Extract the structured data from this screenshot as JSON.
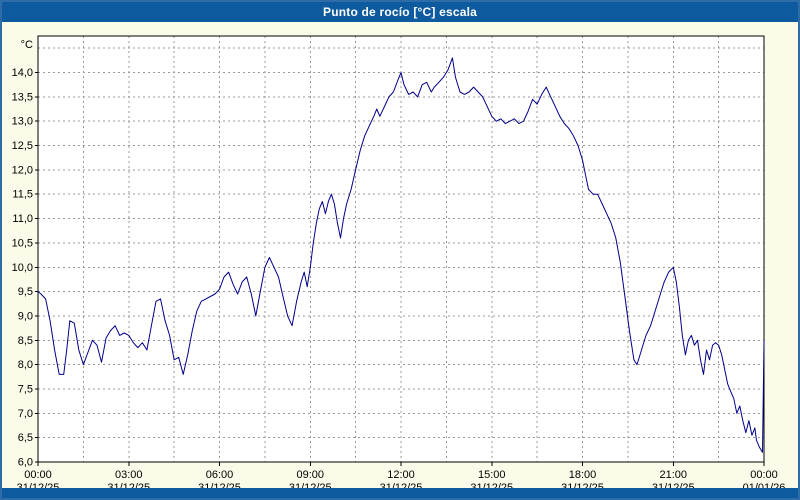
{
  "window": {
    "title": "Punto de rocío [°C] escala"
  },
  "colors": {
    "titlebar": "#0e5a9e",
    "frame": "#2e6ca8",
    "page_bg": "#fbfbea",
    "plot_bg": "#ffffff",
    "grid": "#999999",
    "axis": "#000000",
    "line": "#00008b",
    "label": "#000000"
  },
  "chart_data": {
    "type": "line",
    "title": "Punto de rocío [°C] escala",
    "ylabel": "°C",
    "xlabel": "",
    "ylim": [
      6.0,
      14.75
    ],
    "x_hours_span": 24,
    "x_grid_step_hours": 1.5,
    "y_grid_step": 0.5,
    "legend": "none",
    "grid": "dashed",
    "y_ticks": [
      {
        "label": "14,0",
        "value": 14.0
      },
      {
        "label": "13,5",
        "value": 13.5
      },
      {
        "label": "13,0",
        "value": 13.0
      },
      {
        "label": "12,5",
        "value": 12.5
      },
      {
        "label": "12,0",
        "value": 12.0
      },
      {
        "label": "11,5",
        "value": 11.5
      },
      {
        "label": "11,0",
        "value": 11.0
      },
      {
        "label": "10,5",
        "value": 10.5
      },
      {
        "label": "10,0",
        "value": 10.0
      },
      {
        "label": "9,5",
        "value": 9.5
      },
      {
        "label": "9,0",
        "value": 9.0
      },
      {
        "label": "8,5",
        "value": 8.5
      },
      {
        "label": "8,0",
        "value": 8.0
      },
      {
        "label": "7,5",
        "value": 7.5
      },
      {
        "label": "7,0",
        "value": 7.0
      },
      {
        "label": "6,5",
        "value": 6.5
      },
      {
        "label": "6,0",
        "value": 6.0
      }
    ],
    "x_ticks": [
      {
        "hour": 0,
        "time": "00:00",
        "date": "31/12/25"
      },
      {
        "hour": 3,
        "time": "03:00",
        "date": "31/12/25"
      },
      {
        "hour": 6,
        "time": "06:00",
        "date": "31/12/25"
      },
      {
        "hour": 9,
        "time": "09:00",
        "date": "31/12/25"
      },
      {
        "hour": 12,
        "time": "12:00",
        "date": "31/12/25"
      },
      {
        "hour": 15,
        "time": "15:00",
        "date": "31/12/25"
      },
      {
        "hour": 18,
        "time": "18:00",
        "date": "31/12/25"
      },
      {
        "hour": 21,
        "time": "21:00",
        "date": "31/12/25"
      },
      {
        "hour": 24,
        "time": "00:00",
        "date": "01/01/26"
      }
    ],
    "points": [
      [
        0.0,
        9.5
      ],
      [
        0.1,
        9.45
      ],
      [
        0.25,
        9.35
      ],
      [
        0.4,
        8.9
      ],
      [
        0.55,
        8.3
      ],
      [
        0.7,
        7.8
      ],
      [
        0.85,
        7.8
      ],
      [
        0.95,
        8.3
      ],
      [
        1.05,
        8.9
      ],
      [
        1.2,
        8.85
      ],
      [
        1.35,
        8.3
      ],
      [
        1.5,
        8.0
      ],
      [
        1.65,
        8.25
      ],
      [
        1.8,
        8.5
      ],
      [
        1.95,
        8.4
      ],
      [
        2.1,
        8.05
      ],
      [
        2.25,
        8.55
      ],
      [
        2.4,
        8.7
      ],
      [
        2.55,
        8.8
      ],
      [
        2.7,
        8.6
      ],
      [
        2.85,
        8.65
      ],
      [
        3.0,
        8.6
      ],
      [
        3.15,
        8.45
      ],
      [
        3.3,
        8.35
      ],
      [
        3.45,
        8.45
      ],
      [
        3.6,
        8.3
      ],
      [
        3.75,
        8.8
      ],
      [
        3.9,
        9.3
      ],
      [
        4.05,
        9.35
      ],
      [
        4.2,
        8.9
      ],
      [
        4.35,
        8.6
      ],
      [
        4.5,
        8.1
      ],
      [
        4.65,
        8.15
      ],
      [
        4.8,
        7.8
      ],
      [
        4.95,
        8.2
      ],
      [
        5.1,
        8.7
      ],
      [
        5.25,
        9.1
      ],
      [
        5.4,
        9.3
      ],
      [
        5.55,
        9.35
      ],
      [
        5.7,
        9.4
      ],
      [
        5.85,
        9.45
      ],
      [
        6.0,
        9.55
      ],
      [
        6.15,
        9.8
      ],
      [
        6.3,
        9.9
      ],
      [
        6.45,
        9.65
      ],
      [
        6.6,
        9.45
      ],
      [
        6.75,
        9.7
      ],
      [
        6.9,
        9.8
      ],
      [
        7.05,
        9.45
      ],
      [
        7.2,
        9.0
      ],
      [
        7.35,
        9.5
      ],
      [
        7.5,
        10.0
      ],
      [
        7.65,
        10.2
      ],
      [
        7.8,
        10.0
      ],
      [
        7.95,
        9.8
      ],
      [
        8.1,
        9.4
      ],
      [
        8.25,
        9.0
      ],
      [
        8.4,
        8.8
      ],
      [
        8.55,
        9.3
      ],
      [
        8.7,
        9.7
      ],
      [
        8.8,
        9.9
      ],
      [
        8.9,
        9.6
      ],
      [
        9.0,
        10.0
      ],
      [
        9.1,
        10.5
      ],
      [
        9.2,
        10.9
      ],
      [
        9.3,
        11.2
      ],
      [
        9.4,
        11.35
      ],
      [
        9.5,
        11.1
      ],
      [
        9.6,
        11.35
      ],
      [
        9.7,
        11.5
      ],
      [
        9.8,
        11.3
      ],
      [
        9.9,
        10.9
      ],
      [
        10.0,
        10.6
      ],
      [
        10.1,
        11.0
      ],
      [
        10.2,
        11.3
      ],
      [
        10.35,
        11.6
      ],
      [
        10.5,
        12.0
      ],
      [
        10.65,
        12.4
      ],
      [
        10.8,
        12.7
      ],
      [
        10.95,
        12.9
      ],
      [
        11.1,
        13.1
      ],
      [
        11.2,
        13.25
      ],
      [
        11.3,
        13.1
      ],
      [
        11.45,
        13.3
      ],
      [
        11.6,
        13.5
      ],
      [
        11.75,
        13.6
      ],
      [
        11.9,
        13.85
      ],
      [
        12.0,
        14.0
      ],
      [
        12.1,
        13.75
      ],
      [
        12.25,
        13.55
      ],
      [
        12.4,
        13.6
      ],
      [
        12.55,
        13.5
      ],
      [
        12.7,
        13.75
      ],
      [
        12.85,
        13.8
      ],
      [
        13.0,
        13.6
      ],
      [
        13.1,
        13.7
      ],
      [
        13.25,
        13.8
      ],
      [
        13.4,
        13.9
      ],
      [
        13.55,
        14.05
      ],
      [
        13.7,
        14.3
      ],
      [
        13.8,
        13.9
      ],
      [
        13.95,
        13.6
      ],
      [
        14.1,
        13.55
      ],
      [
        14.25,
        13.6
      ],
      [
        14.4,
        13.7
      ],
      [
        14.55,
        13.6
      ],
      [
        14.7,
        13.5
      ],
      [
        14.85,
        13.3
      ],
      [
        15.0,
        13.1
      ],
      [
        15.15,
        13.0
      ],
      [
        15.3,
        13.05
      ],
      [
        15.45,
        12.95
      ],
      [
        15.6,
        13.0
      ],
      [
        15.75,
        13.05
      ],
      [
        15.9,
        12.95
      ],
      [
        16.05,
        13.0
      ],
      [
        16.2,
        13.2
      ],
      [
        16.35,
        13.45
      ],
      [
        16.5,
        13.35
      ],
      [
        16.65,
        13.55
      ],
      [
        16.8,
        13.7
      ],
      [
        16.95,
        13.5
      ],
      [
        17.1,
        13.3
      ],
      [
        17.25,
        13.1
      ],
      [
        17.4,
        12.95
      ],
      [
        17.55,
        12.85
      ],
      [
        17.7,
        12.7
      ],
      [
        17.85,
        12.5
      ],
      [
        18.0,
        12.2
      ],
      [
        18.1,
        11.9
      ],
      [
        18.2,
        11.6
      ],
      [
        18.35,
        11.5
      ],
      [
        18.5,
        11.5
      ],
      [
        18.65,
        11.3
      ],
      [
        18.8,
        11.1
      ],
      [
        18.95,
        10.9
      ],
      [
        19.1,
        10.6
      ],
      [
        19.25,
        10.1
      ],
      [
        19.4,
        9.4
      ],
      [
        19.55,
        8.7
      ],
      [
        19.7,
        8.1
      ],
      [
        19.8,
        8.0
      ],
      [
        19.95,
        8.3
      ],
      [
        20.1,
        8.6
      ],
      [
        20.25,
        8.8
      ],
      [
        20.4,
        9.1
      ],
      [
        20.55,
        9.4
      ],
      [
        20.7,
        9.7
      ],
      [
        20.85,
        9.9
      ],
      [
        21.0,
        10.0
      ],
      [
        21.1,
        9.7
      ],
      [
        21.2,
        9.2
      ],
      [
        21.3,
        8.6
      ],
      [
        21.4,
        8.2
      ],
      [
        21.5,
        8.5
      ],
      [
        21.6,
        8.6
      ],
      [
        21.7,
        8.4
      ],
      [
        21.8,
        8.5
      ],
      [
        21.9,
        8.1
      ],
      [
        22.0,
        7.8
      ],
      [
        22.1,
        8.3
      ],
      [
        22.2,
        8.1
      ],
      [
        22.3,
        8.4
      ],
      [
        22.4,
        8.45
      ],
      [
        22.5,
        8.4
      ],
      [
        22.6,
        8.2
      ],
      [
        22.7,
        7.9
      ],
      [
        22.8,
        7.6
      ],
      [
        22.9,
        7.45
      ],
      [
        23.0,
        7.3
      ],
      [
        23.1,
        7.0
      ],
      [
        23.2,
        7.15
      ],
      [
        23.3,
        6.85
      ],
      [
        23.4,
        6.6
      ],
      [
        23.5,
        6.85
      ],
      [
        23.6,
        6.55
      ],
      [
        23.7,
        6.7
      ],
      [
        23.75,
        6.45
      ],
      [
        23.85,
        6.3
      ],
      [
        23.95,
        6.2
      ],
      [
        24.0,
        8.5
      ]
    ]
  }
}
